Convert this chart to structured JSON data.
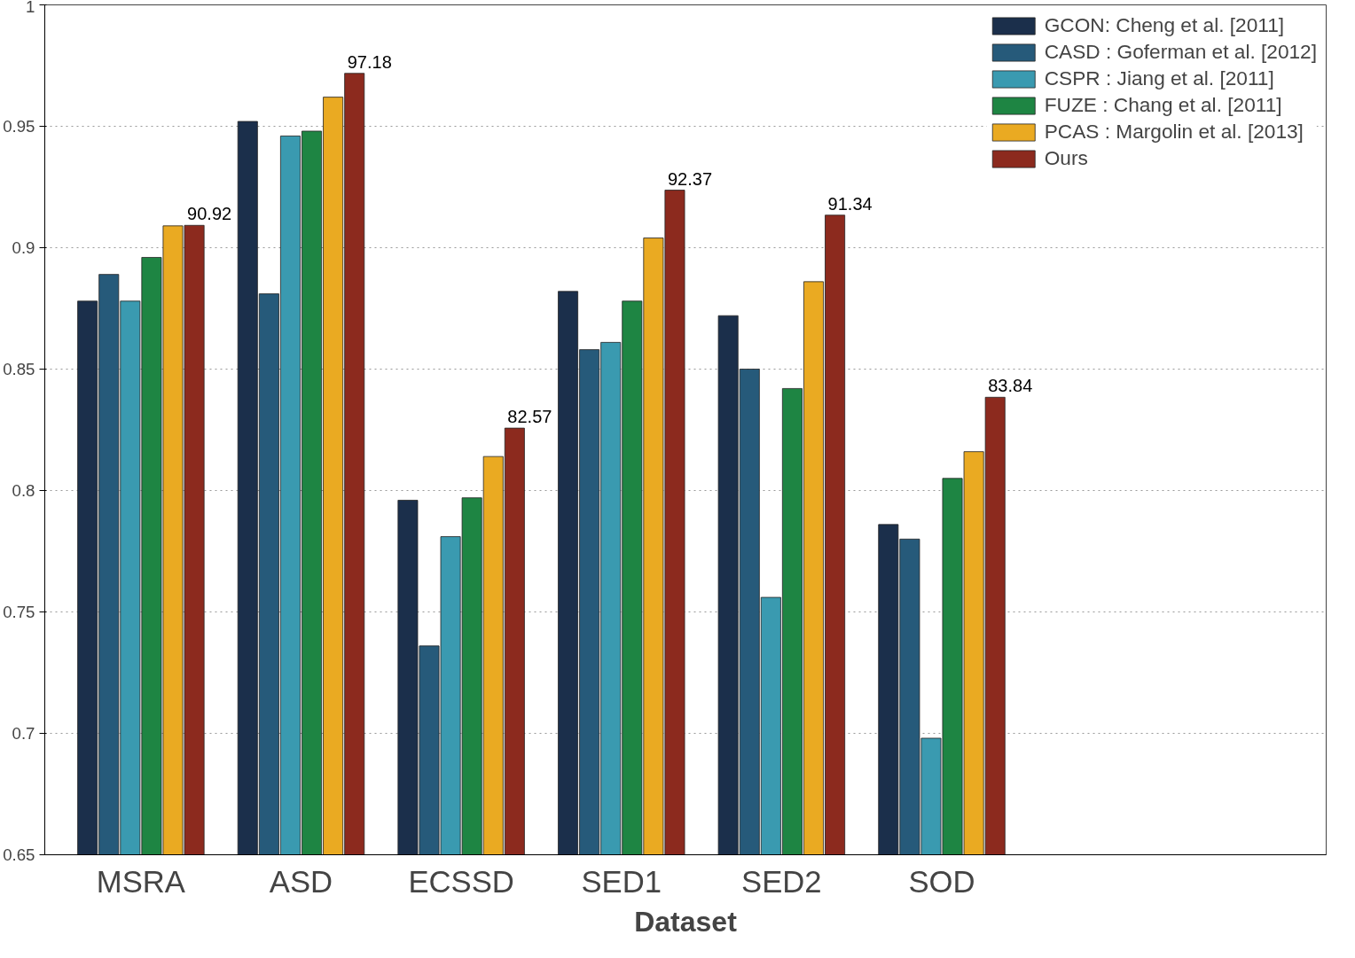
{
  "chart_data": {
    "type": "bar",
    "xlabel": "Dataset",
    "categories": [
      "MSRA",
      "ASD",
      "ECSSD",
      "SED1",
      "SED2",
      "SOD"
    ],
    "series": [
      {
        "name": "GCON: Cheng et al. [2011]",
        "color": "#1b2f4b",
        "values": [
          0.878,
          0.952,
          0.796,
          0.882,
          0.872,
          0.786
        ]
      },
      {
        "name": "CASD : Goferman et al. [2012]",
        "color": "#265a7a",
        "values": [
          0.889,
          0.881,
          0.736,
          0.858,
          0.85,
          0.78
        ]
      },
      {
        "name": "CSPR : Jiang et al. [2011]",
        "color": "#3a9ab0",
        "values": [
          0.878,
          0.946,
          0.781,
          0.861,
          0.756,
          0.698
        ]
      },
      {
        "name": "FUZE : Chang et al. [2011]",
        "color": "#1e8543",
        "values": [
          0.896,
          0.948,
          0.797,
          0.878,
          0.842,
          0.805
        ]
      },
      {
        "name": "PCAS : Margolin et al. [2013]",
        "color": "#eaaa22",
        "values": [
          0.909,
          0.962,
          0.814,
          0.904,
          0.886,
          0.816
        ]
      },
      {
        "name": "Ours",
        "color": "#8c2a1e",
        "values": [
          0.9092,
          0.9718,
          0.8257,
          0.9237,
          0.9134,
          0.8384
        ]
      }
    ],
    "annotations": [
      "90.92",
      "97.18",
      "82.57",
      "92.37",
      "91.34",
      "83.84"
    ],
    "ylim": [
      0.65,
      1
    ],
    "yticks": [
      0.65,
      0.7,
      0.75,
      0.8,
      0.85,
      0.9,
      0.95,
      1
    ],
    "grid": "y",
    "legend": "top right"
  }
}
